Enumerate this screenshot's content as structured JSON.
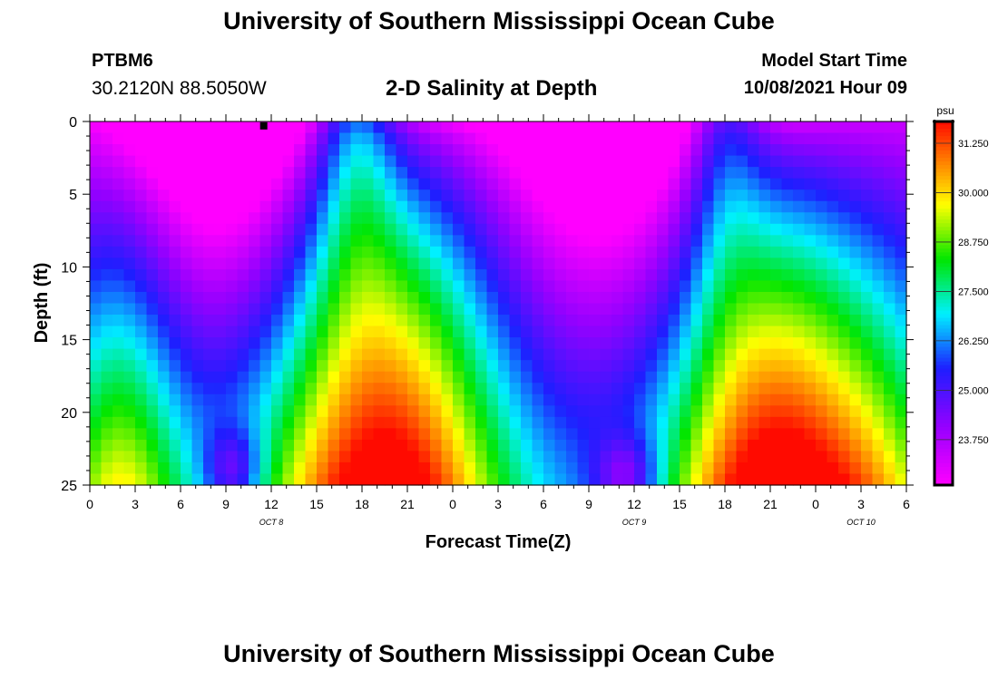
{
  "header": {
    "title": "University of Southern Mississippi Ocean Cube",
    "station_id": "PTBM6",
    "station_coords": "30.2120N  88.5050W",
    "chart_title": "2-D Salinity at Depth",
    "model_start_label": "Model Start Time",
    "model_start_value": "10/08/2021 Hour 09"
  },
  "footer": {
    "title": "University of Southern Mississippi Ocean Cube"
  },
  "chart_data": {
    "type": "heatmap",
    "title": "2-D Salinity at Depth",
    "xlabel": "Forecast Time(Z)",
    "ylabel": "Depth (ft)",
    "x_ticks": [
      "0",
      "3",
      "6",
      "9",
      "12",
      "15",
      "18",
      "21",
      "0",
      "3",
      "6",
      "9",
      "12",
      "15",
      "18",
      "21",
      "0",
      "3",
      "6"
    ],
    "x_hours_range": [
      0,
      54
    ],
    "date_labels": [
      {
        "label": "OCT 8",
        "hour": 12
      },
      {
        "label": "OCT 9",
        "hour": 36
      },
      {
        "label": "OCT 10",
        "hour": 51
      }
    ],
    "y_ticks": [
      "0",
      "5",
      "10",
      "15",
      "20",
      "25"
    ],
    "ylim": [
      0,
      25
    ],
    "colorbar": {
      "unit": "psu",
      "range": [
        22.6,
        31.8
      ],
      "ticks": [
        "31.250",
        "30.000",
        "28.750",
        "27.500",
        "26.250",
        "25.000",
        "23.750"
      ],
      "tick_values": [
        31.25,
        30.0,
        28.75,
        27.5,
        26.25,
        25.0,
        23.75
      ]
    },
    "marker": {
      "hour": 11.5,
      "depth": 0.3
    },
    "description_values": {
      "surface_fresh_low_psu": 22.8,
      "bottom_salty_high_psu": 31.3
    }
  }
}
